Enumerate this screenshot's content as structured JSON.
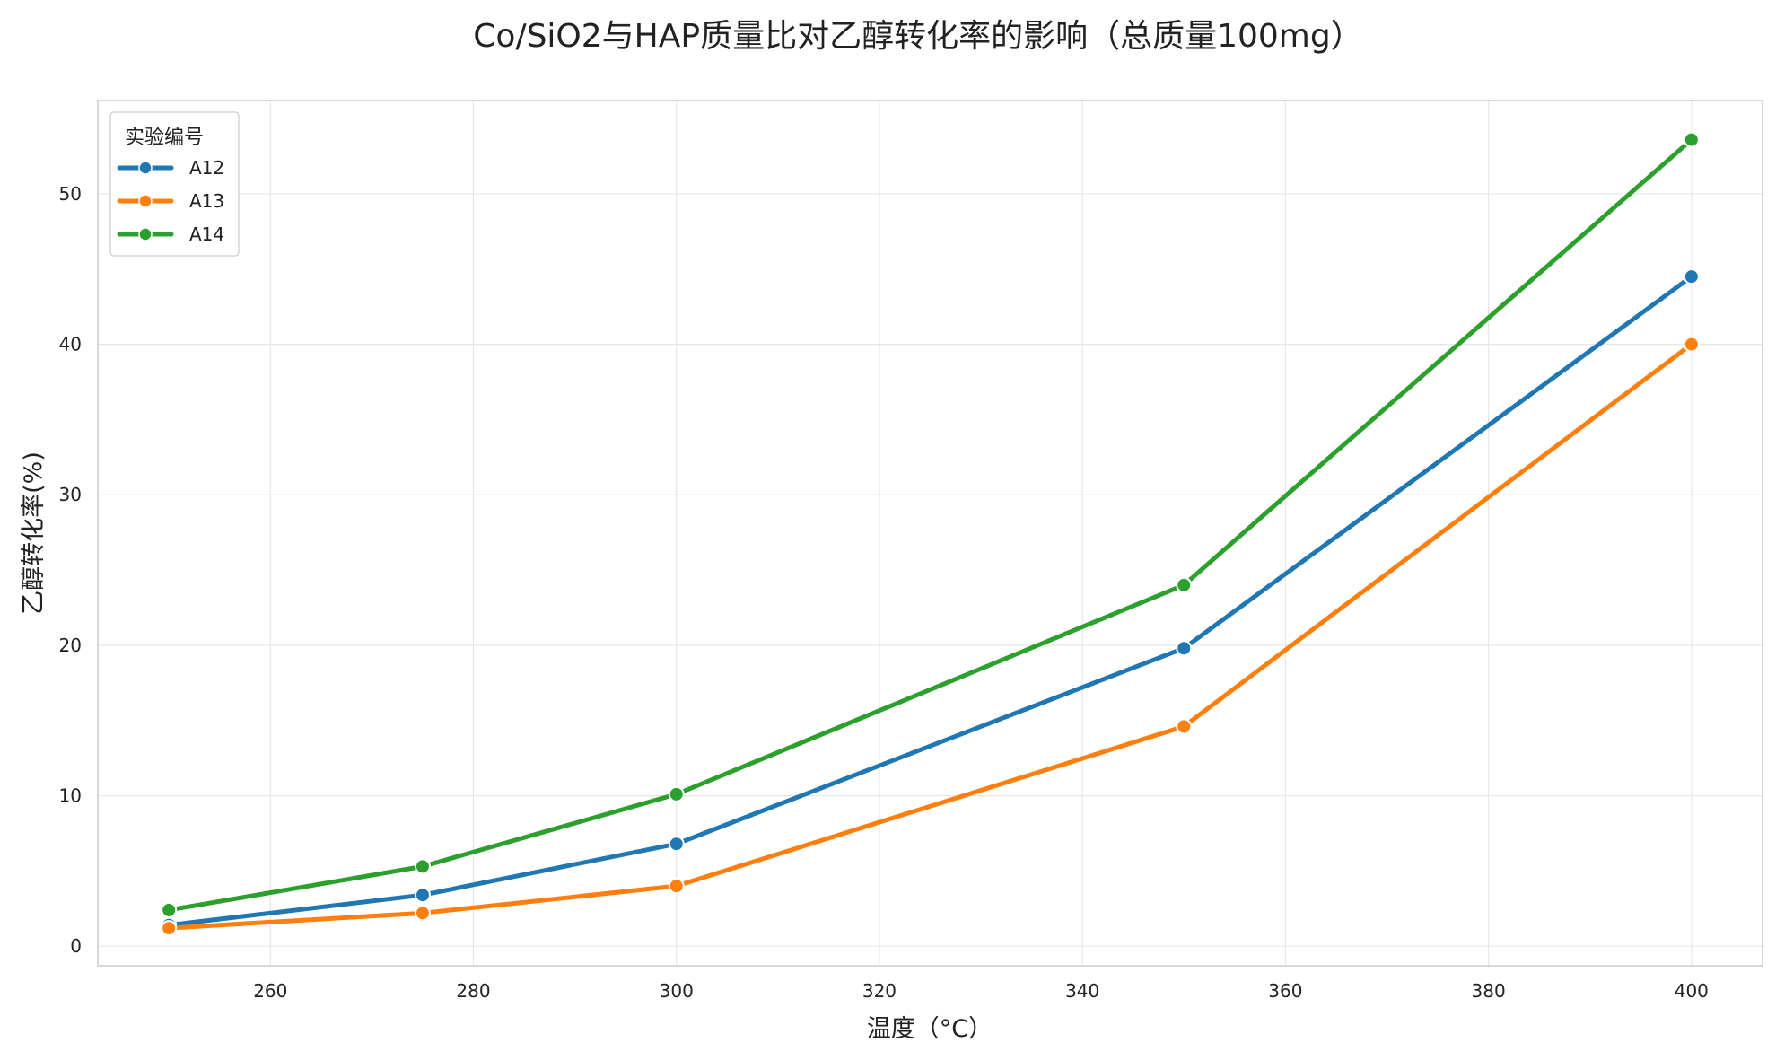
{
  "chart_data": {
    "type": "line",
    "title": "Co/SiO2与HAP质量比对乙醇转化率的影响（总质量100mg）",
    "xlabel": "温度（°C）",
    "ylabel": "乙醇转化率(%)",
    "xlim": [
      243,
      407
    ],
    "ylim": [
      -1.3,
      56.2
    ],
    "x_ticks": [
      260,
      280,
      300,
      320,
      340,
      360,
      380,
      400
    ],
    "y_ticks": [
      0,
      10,
      20,
      30,
      40,
      50
    ],
    "grid": true,
    "legend": {
      "title": "实验编号",
      "placement": "top-left"
    },
    "x": [
      250,
      275,
      300,
      350,
      400
    ],
    "series": [
      {
        "name": "A12",
        "color": "#1f77b4",
        "values": [
          1.4,
          3.4,
          6.8,
          19.8,
          44.5
        ]
      },
      {
        "name": "A13",
        "color": "#ff7f0e",
        "values": [
          1.2,
          2.2,
          4.0,
          14.6,
          40.0
        ]
      },
      {
        "name": "A14",
        "color": "#2ca02c",
        "values": [
          2.4,
          5.3,
          10.1,
          24.0,
          53.6
        ]
      }
    ]
  }
}
